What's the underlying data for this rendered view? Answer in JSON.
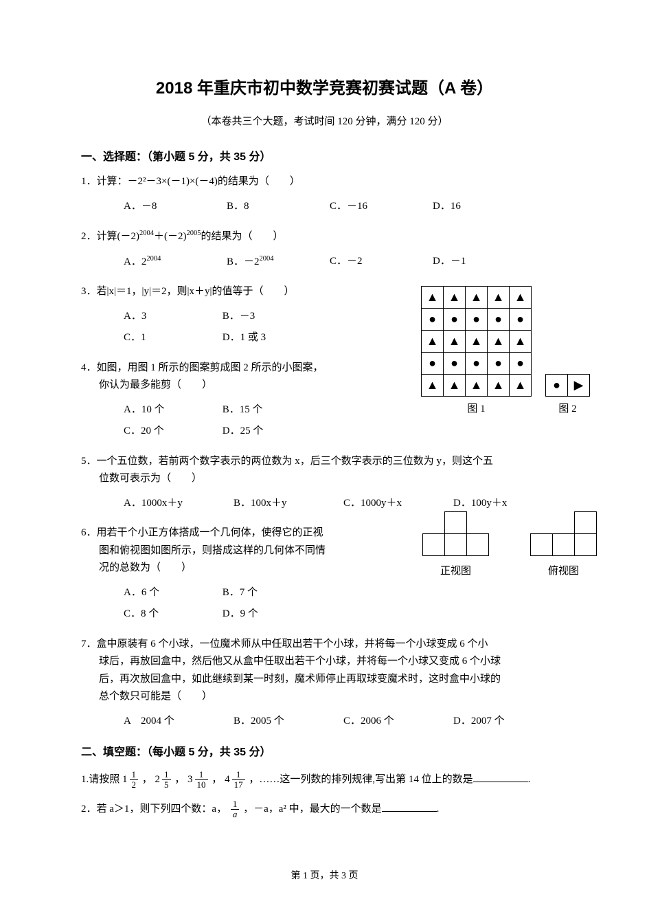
{
  "title": "2018 年重庆市初中数学竞赛初赛试题（A 卷）",
  "subtitle": "（本卷共三个大题，考试时间 120 分钟，满分 120 分）",
  "section1": "一、选择题：（第小题 5 分，共 35 分）",
  "section2": "二、填空题：（每小题 5 分，共 35 分）",
  "footer": "第 1 页，共 3 页",
  "q1": {
    "stem": "1．计算：－2²－3×(－1)×(－4)的结果为（　　）",
    "A": "A．－8",
    "B": "B．8",
    "C": "C．－16",
    "D": "D．16"
  },
  "q2": {
    "stem_pre": "2．计算(－2)",
    "exp1": "2004",
    "stem_mid": "＋(－2)",
    "exp2": "2005",
    "stem_post": "的结果为（　　）",
    "A_pre": "A．2",
    "A_exp": "2004",
    "B_pre": "B．－2",
    "B_exp": "2004",
    "C": "C．－2",
    "D": "D．－1"
  },
  "q3": {
    "stem": "3．若|x|＝1，|y|＝2，则|x＋y|的值等于（　　）",
    "A": "A．3",
    "B": "B．－3",
    "C": "C．1",
    "D": "D．1 或 3"
  },
  "q4": {
    "stem1": "4．如图，用图 1 所示的图案剪成图 2 所示的小图案，",
    "stem2": "你认为最多能剪（　　）",
    "A": "A．10 个",
    "B": "B．15 个",
    "C": "C．20 个",
    "D": "D．25 个",
    "fig1_label": "图 1",
    "fig2_label": "图 2",
    "grid1": [
      [
        "▲",
        "▲",
        "▲",
        "▲",
        "▲"
      ],
      [
        "●",
        "●",
        "●",
        "●",
        "●"
      ],
      [
        "▲",
        "▲",
        "▲",
        "▲",
        "▲"
      ],
      [
        "●",
        "●",
        "●",
        "●",
        "●"
      ],
      [
        "▲",
        "▲",
        "▲",
        "▲",
        "▲"
      ]
    ],
    "grid2": [
      [
        "●",
        "▶"
      ]
    ]
  },
  "q5": {
    "stem1": "5．一个五位数，若前两个数字表示的两位数为 x，后三个数字表示的三位数为 y，则这个五",
    "stem2": "位数可表示为（　　）",
    "A": "A．1000x＋y",
    "B": "B．100x＋y",
    "C": "C．1000y＋x",
    "D": "D．100y＋x"
  },
  "q6": {
    "stem1": "6．用若干个小正方体搭成一个几何体，使得它的正视",
    "stem2": "图和俯视图如图所示，则搭成这样的几何体不同情",
    "stem3": "况的总数为（　　）",
    "A": "A．6 个",
    "B": "B．7 个",
    "C": "C．8 个",
    "D": "D．9 个",
    "front_label": "正视图",
    "top_label": "俯视图"
  },
  "q7": {
    "stem1": "7．盒中原装有 6 个小球，一位魔术师从中任取出若干个小球，并将每一个小球变成 6 个小",
    "stem2": "球后，再放回盒中，然后他又从盒中任取出若干个小球，并将每一个小球又变成 6 个小球",
    "stem3": "后，再次放回盒中，如此继续到某一时刻，魔术师停止再取球变魔术时，这时盒中小球的",
    "stem4": "总个数只可能是（　　）",
    "A": "A　2004 个",
    "B": "B．2005 个",
    "C": "C．2006 个",
    "D": "D．2007 个"
  },
  "f1": {
    "pre": "1.请按照 ",
    "m1_w": "1",
    "m1_n": "1",
    "m1_d": "2",
    "m2_w": "2",
    "m2_n": "1",
    "m2_d": "5",
    "m3_w": "3",
    "m3_n": "1",
    "m3_d": "10",
    "m4_w": "4",
    "m4_n": "1",
    "m4_d": "17",
    "post": " ，……这一列数的排列规律,写出第 14 位上的数是",
    "end": "."
  },
  "f2": {
    "pre": "2．若 a＞1，则下列四个数：a，",
    "fn": "1",
    "fd": "a",
    "mid": " ，－a，a² 中，最大的一个数是",
    "end": "."
  }
}
